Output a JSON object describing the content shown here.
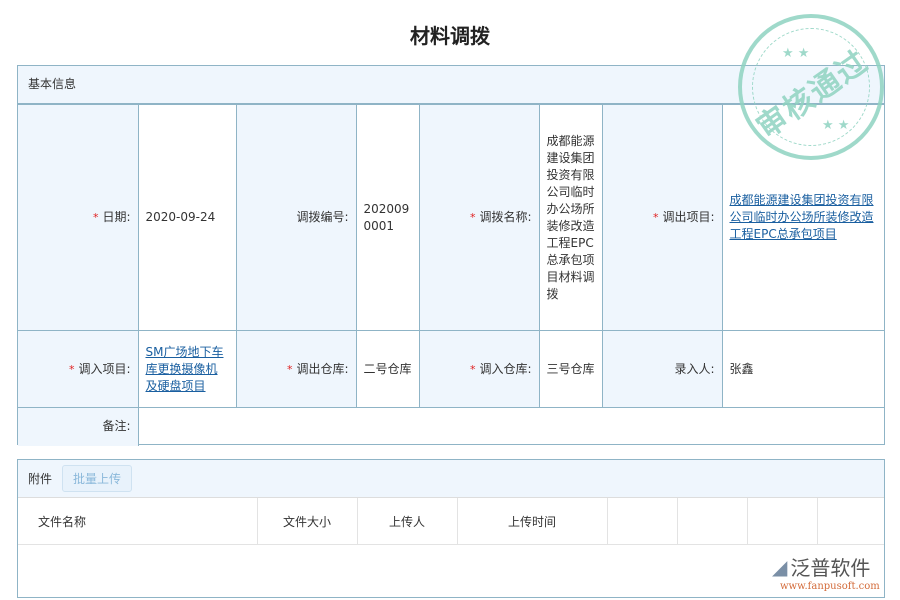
{
  "title": "材料调拨",
  "basic": {
    "header": "基本信息",
    "fields": {
      "date": {
        "label": "日期:",
        "value": "2020-09-24",
        "required": true
      },
      "code": {
        "label": "调拨编号:",
        "value": "2020090001",
        "required": false
      },
      "name": {
        "label": "调拨名称:",
        "value": "成都能源建设集团投资有限公司临时办公场所装修改造工程EPC总承包项目材料调拨",
        "required": true
      },
      "out_project": {
        "label": "调出项目:",
        "value": "成都能源建设集团投资有限公司临时办公场所装修改造工程EPC总承包项目",
        "required": true
      },
      "in_project": {
        "label": "调入项目:",
        "value": "SM广场地下车库更换摄像机及硬盘项目",
        "required": true
      },
      "out_warehouse": {
        "label": "调出仓库:",
        "value": "二号仓库",
        "required": true
      },
      "in_warehouse": {
        "label": "调入仓库:",
        "value": "三号仓库",
        "required": true
      },
      "creator": {
        "label": "录入人:",
        "value": "张鑫",
        "required": false
      },
      "remark": {
        "label": "备注:",
        "value": ""
      }
    }
  },
  "attachments": {
    "header": "附件",
    "upload_label": "批量上传",
    "columns": [
      "文件名称",
      "文件大小",
      "上传人",
      "上传时间",
      "",
      "",
      "",
      ""
    ]
  },
  "stamp": {
    "text": "审核通过",
    "color": "#8fd3c1"
  },
  "logo": {
    "name": "泛普软件",
    "url": "www.fanpusoft.com"
  },
  "required_mark": "*"
}
